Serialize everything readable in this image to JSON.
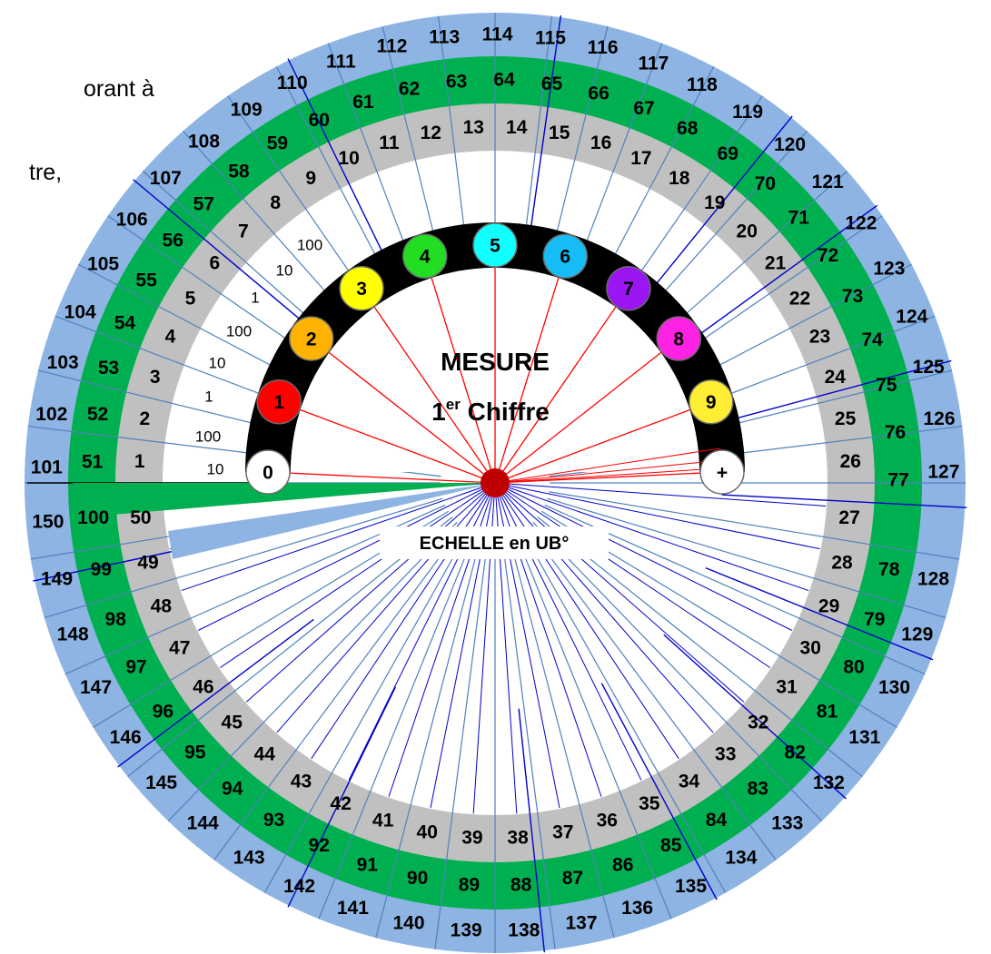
{
  "corner_text": [
    "orant à",
    "tre,"
  ],
  "title": {
    "main": "MESURE",
    "line2_prefix": "1",
    "line2_sup": "er",
    "line2_suffix": "Chiffre"
  },
  "scale_label": "ECHELLE en UB°",
  "pendulum_buttons": [
    {
      "label": "0",
      "color": "#ffffff"
    },
    {
      "label": "1",
      "color": "#ff0000"
    },
    {
      "label": "2",
      "color": "#ffb300"
    },
    {
      "label": "3",
      "color": "#ffff00"
    },
    {
      "label": "4",
      "color": "#22dd22"
    },
    {
      "label": "5",
      "color": "#11ffff"
    },
    {
      "label": "6",
      "color": "#16bdf6"
    },
    {
      "label": "7",
      "color": "#9a16f2"
    },
    {
      "label": "8",
      "color": "#ff22e5"
    },
    {
      "label": "9",
      "color": "#ffee33"
    },
    {
      "label": "+",
      "color": "#ffffff"
    }
  ],
  "small_multipliers": [
    "10",
    "100",
    "1",
    "10",
    "100",
    "1",
    "10",
    "100"
  ],
  "rings": {
    "inner_grey": {
      "from": 1,
      "to": 50
    },
    "middle_green": {
      "from": 51,
      "to": 100
    },
    "outer_blue": {
      "from": 101,
      "to": 150
    }
  },
  "colors": {
    "outer_ring": "#8eb4e3",
    "middle_ring": "#00b050",
    "inner_ring": "#c0c0c0",
    "arc_band": "#000000",
    "center_dot": "#c00000",
    "red_lines": "#ff0000",
    "blue_lines": "#0000cc",
    "light_lines": "#4f81bd"
  }
}
